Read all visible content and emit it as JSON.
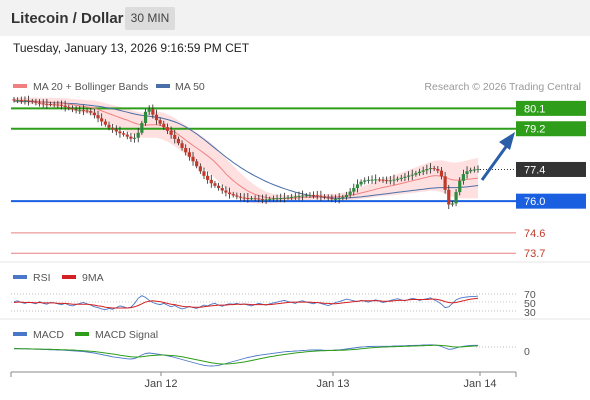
{
  "header": {
    "title": "Litecoin / Dollar",
    "timeframe": "30 MIN"
  },
  "timestamp": "Tuesday, January 13, 2026 9:16:59 PM CET",
  "legend": {
    "ma20_label": "MA 20 + Bollinger Bands",
    "ma50_label": "MA 50",
    "ma20_color": "#f08080",
    "ma50_color": "#4a6ea8",
    "credit": "Research © 2026 Trading Central"
  },
  "colors": {
    "up": "#2e8b3e",
    "down": "#c0392b",
    "resistance": "#2e9e1a",
    "support": "#1a5fe0",
    "pivot": "#333333",
    "minor": "#e88080",
    "band": "#ffd6d6",
    "arrow": "#2a5ea8"
  },
  "rsi_panel": {
    "label_rsi": "RSI",
    "label_9ma": "9MA",
    "levels": [
      "70",
      "50",
      "30"
    ],
    "rsi_color": "#4a78c8",
    "ma_color": "#d42020"
  },
  "macd_panel": {
    "label_macd": "MACD",
    "label_signal": "MACD Signal",
    "zero_label": "0",
    "macd_color": "#4a78c8",
    "signal_color": "#2e9e1a"
  },
  "x_axis": {
    "labels": [
      "Jan 12",
      "Jan 13",
      "Jan 14"
    ]
  },
  "chart_data": {
    "type": "candlestick",
    "y_range": [
      73.4,
      81.0
    ],
    "levels": [
      {
        "label": "80.1",
        "value": 80.1,
        "kind": "resistance"
      },
      {
        "label": "79.2",
        "value": 79.2,
        "kind": "resistance"
      },
      {
        "label": "77.4",
        "value": 77.4,
        "kind": "pivot"
      },
      {
        "label": "76.0",
        "value": 76.0,
        "kind": "support"
      },
      {
        "label": "74.6",
        "value": 74.6,
        "kind": "minor"
      },
      {
        "label": "73.7",
        "value": 73.7,
        "kind": "minor"
      }
    ],
    "x_tick_positions": [
      35,
      90,
      120
    ],
    "close": [
      80.45,
      80.46,
      80.44,
      80.44,
      80.42,
      80.39,
      80.35,
      80.32,
      80.3,
      80.29,
      80.28,
      80.27,
      80.26,
      80.22,
      80.16,
      80.1,
      80.05,
      80.02,
      80.02,
      80.0,
      79.98,
      79.91,
      79.8,
      79.66,
      79.52,
      79.38,
      79.25,
      79.16,
      79.08,
      79.0,
      78.94,
      78.85,
      78.76,
      78.8,
      79.02,
      79.45,
      79.95,
      80.08,
      79.82,
      79.58,
      79.42,
      79.27,
      79.11,
      78.93,
      78.75,
      78.56,
      78.35,
      78.16,
      77.96,
      77.76,
      77.54,
      77.32,
      77.12,
      76.94,
      76.79,
      76.68,
      76.58,
      76.47,
      76.38,
      76.31,
      76.25,
      76.2,
      76.16,
      76.14,
      76.13,
      76.13,
      76.12,
      76.1,
      76.08,
      76.08,
      76.1,
      76.12,
      76.13,
      76.14,
      76.15,
      76.17,
      76.19,
      76.21,
      76.23,
      76.25,
      76.26,
      76.27,
      76.26,
      76.24,
      76.21,
      76.17,
      76.13,
      76.1,
      76.1,
      76.13,
      76.18,
      76.28,
      76.42,
      76.58,
      76.74,
      76.86,
      76.92,
      76.94,
      76.95,
      76.96,
      76.95,
      76.93,
      76.91,
      76.92,
      76.95,
      76.99,
      77.03,
      77.08,
      77.13,
      77.17,
      77.24,
      77.3,
      77.36,
      77.42,
      77.46,
      77.42,
      77.35,
      77.1,
      76.5,
      75.85,
      75.9,
      76.4,
      76.9,
      77.2,
      77.32,
      77.38,
      77.4,
      77.42
    ],
    "ma20": [
      80.45,
      80.46,
      80.45,
      80.45,
      80.44,
      80.43,
      80.42,
      80.4,
      80.39,
      80.38,
      80.37,
      80.35,
      80.34,
      80.33,
      80.31,
      80.29,
      80.26,
      80.24,
      80.21,
      80.19,
      80.16,
      80.14,
      80.11,
      80.05,
      79.99,
      79.93,
      79.87,
      79.81,
      79.75,
      79.69,
      79.63,
      79.58,
      79.51,
      79.45,
      79.4,
      79.36,
      79.36,
      79.37,
      79.38,
      79.38,
      79.35,
      79.3,
      79.23,
      79.15,
      79.05,
      78.94,
      78.82,
      78.7,
      78.58,
      78.46,
      78.35,
      78.24,
      78.12,
      78.0,
      77.87,
      77.73,
      77.56,
      77.39,
      77.21,
      77.05,
      76.91,
      76.78,
      76.66,
      76.55,
      76.45,
      76.37,
      76.3,
      76.24,
      76.2,
      76.16,
      76.14,
      76.12,
      76.11,
      76.11,
      76.12,
      76.12,
      76.13,
      76.14,
      76.15,
      76.16,
      76.17,
      76.17,
      76.18,
      76.18,
      76.19,
      76.19,
      76.19,
      76.19,
      76.19,
      76.2,
      76.21,
      76.23,
      76.25,
      76.28,
      76.32,
      76.36,
      76.4,
      76.44,
      76.48,
      76.53,
      76.57,
      76.61,
      76.64,
      76.67,
      76.7,
      76.74,
      76.78,
      76.82,
      76.86,
      76.9,
      76.94,
      76.98,
      77.02,
      77.06,
      77.1,
      77.12,
      77.12,
      77.1,
      77.06,
      76.99,
      76.95,
      76.93,
      76.93,
      76.94,
      76.96,
      76.98,
      77.0,
      77.02
    ],
    "ma50": [
      80.42,
      80.42,
      80.41,
      80.41,
      80.4,
      80.4,
      80.39,
      80.39,
      80.38,
      80.37,
      80.36,
      80.35,
      80.35,
      80.34,
      80.33,
      80.32,
      80.31,
      80.3,
      80.28,
      80.27,
      80.25,
      80.23,
      80.21,
      80.19,
      80.17,
      80.14,
      80.11,
      80.08,
      80.05,
      80.01,
      79.97,
      79.93,
      79.89,
      79.85,
      79.82,
      79.79,
      79.77,
      79.75,
      79.73,
      79.71,
      79.69,
      79.65,
      79.61,
      79.56,
      79.5,
      79.44,
      79.36,
      79.28,
      79.18,
      79.08,
      78.97,
      78.85,
      78.73,
      78.6,
      78.47,
      78.34,
      78.21,
      78.08,
      77.95,
      77.83,
      77.71,
      77.6,
      77.49,
      77.39,
      77.29,
      77.2,
      77.11,
      77.03,
      76.95,
      76.87,
      76.8,
      76.73,
      76.67,
      76.61,
      76.55,
      76.5,
      76.45,
      76.4,
      76.36,
      76.32,
      76.28,
      76.25,
      76.22,
      76.2,
      76.18,
      76.16,
      76.15,
      76.14,
      76.13,
      76.13,
      76.13,
      76.14,
      76.15,
      76.16,
      76.18,
      76.19,
      76.21,
      76.23,
      76.25,
      76.27,
      76.29,
      76.31,
      76.33,
      76.35,
      76.37,
      76.39,
      76.41,
      76.43,
      76.45,
      76.47,
      76.49,
      76.51,
      76.53,
      76.55,
      76.57,
      76.58,
      76.59,
      76.6,
      76.6,
      76.6,
      76.6,
      76.6,
      76.61,
      76.62,
      76.63,
      76.65,
      76.67,
      76.69
    ],
    "band_width": [
      0.1,
      0.11,
      0.12,
      0.13,
      0.14,
      0.15,
      0.16,
      0.17,
      0.18,
      0.19,
      0.2,
      0.21,
      0.22,
      0.23,
      0.24,
      0.25,
      0.26,
      0.27,
      0.28,
      0.29,
      0.3,
      0.32,
      0.34,
      0.36,
      0.38,
      0.4,
      0.42,
      0.44,
      0.46,
      0.48,
      0.5,
      0.51,
      0.52,
      0.53,
      0.54,
      0.55,
      0.56,
      0.57,
      0.58,
      0.58,
      0.59,
      0.6,
      0.6,
      0.61,
      0.62,
      0.63,
      0.64,
      0.65,
      0.66,
      0.67,
      0.68,
      0.68,
      0.69,
      0.69,
      0.7,
      0.7,
      0.7,
      0.69,
      0.68,
      0.67,
      0.65,
      0.62,
      0.58,
      0.54,
      0.5,
      0.45,
      0.4,
      0.35,
      0.3,
      0.26,
      0.23,
      0.2,
      0.18,
      0.16,
      0.15,
      0.14,
      0.13,
      0.13,
      0.12,
      0.12,
      0.12,
      0.12,
      0.12,
      0.12,
      0.12,
      0.12,
      0.13,
      0.13,
      0.14,
      0.15,
      0.16,
      0.18,
      0.2,
      0.22,
      0.24,
      0.26,
      0.28,
      0.3,
      0.32,
      0.34,
      0.36,
      0.38,
      0.4,
      0.42,
      0.44,
      0.46,
      0.48,
      0.5,
      0.52,
      0.54,
      0.56,
      0.58,
      0.6,
      0.62,
      0.64,
      0.66,
      0.68,
      0.7,
      0.72,
      0.74,
      0.76,
      0.78,
      0.8,
      0.82,
      0.84,
      0.86,
      0.88,
      0.9
    ],
    "rsi": [
      52,
      54,
      50,
      48,
      51,
      49,
      47,
      52,
      48,
      46,
      50,
      49,
      47,
      45,
      48,
      44,
      42,
      45,
      48,
      50,
      47,
      44,
      40,
      38,
      35,
      33,
      36,
      34,
      38,
      42,
      40,
      37,
      39,
      48,
      60,
      66,
      62,
      55,
      50,
      47,
      45,
      48,
      44,
      40,
      43,
      38,
      35,
      37,
      41,
      38,
      36,
      40,
      44,
      42,
      46,
      48,
      44,
      41,
      45,
      47,
      46,
      48,
      45,
      47,
      44,
      42,
      45,
      48,
      46,
      44,
      47,
      49,
      51,
      53,
      55,
      52,
      50,
      48,
      52,
      54,
      51,
      49,
      47,
      50,
      48,
      45,
      43,
      46,
      50,
      52,
      55,
      58,
      56,
      54,
      52,
      55,
      53,
      51,
      54,
      56,
      53,
      50,
      52,
      55,
      57,
      59,
      56,
      54,
      57,
      60,
      58,
      55,
      57,
      59,
      61,
      56,
      52,
      46,
      38,
      40,
      48,
      56,
      60,
      62,
      63,
      64,
      64,
      65
    ],
    "rsi_ma": [
      50,
      51,
      51,
      50,
      50,
      50,
      49,
      50,
      49,
      49,
      49,
      49,
      48,
      48,
      48,
      47,
      46,
      46,
      46,
      46,
      46,
      45,
      44,
      42,
      41,
      39,
      38,
      37,
      37,
      37,
      37,
      37,
      38,
      40,
      43,
      47,
      51,
      53,
      54,
      53,
      52,
      50,
      48,
      46,
      45,
      43,
      41,
      40,
      40,
      39,
      39,
      39,
      40,
      41,
      42,
      43,
      44,
      44,
      44,
      45,
      45,
      46,
      46,
      46,
      46,
      45,
      45,
      45,
      45,
      45,
      45,
      46,
      47,
      48,
      49,
      50,
      51,
      51,
      51,
      51,
      51,
      51,
      50,
      50,
      49,
      48,
      48,
      47,
      47,
      48,
      49,
      50,
      51,
      52,
      53,
      54,
      54,
      54,
      54,
      54,
      54,
      53,
      53,
      53,
      54,
      55,
      55,
      55,
      56,
      57,
      57,
      57,
      57,
      57,
      58,
      58,
      57,
      55,
      52,
      50,
      49,
      50,
      52,
      54,
      56,
      58,
      59,
      60
    ],
    "macd": [
      0.02,
      0.02,
      0.01,
      0.01,
      0.0,
      0.0,
      -0.01,
      -0.01,
      -0.02,
      -0.02,
      -0.03,
      -0.03,
      -0.04,
      -0.04,
      -0.05,
      -0.06,
      -0.07,
      -0.08,
      -0.09,
      -0.1,
      -0.12,
      -0.14,
      -0.16,
      -0.19,
      -0.22,
      -0.25,
      -0.28,
      -0.31,
      -0.33,
      -0.35,
      -0.37,
      -0.39,
      -0.4,
      -0.38,
      -0.32,
      -0.24,
      -0.18,
      -0.16,
      -0.18,
      -0.2,
      -0.22,
      -0.24,
      -0.27,
      -0.3,
      -0.34,
      -0.38,
      -0.42,
      -0.46,
      -0.5,
      -0.54,
      -0.58,
      -0.62,
      -0.65,
      -0.67,
      -0.68,
      -0.67,
      -0.65,
      -0.62,
      -0.58,
      -0.54,
      -0.5,
      -0.46,
      -0.42,
      -0.38,
      -0.34,
      -0.31,
      -0.28,
      -0.25,
      -0.23,
      -0.21,
      -0.19,
      -0.17,
      -0.15,
      -0.13,
      -0.11,
      -0.1,
      -0.09,
      -0.08,
      -0.07,
      -0.06,
      -0.05,
      -0.04,
      -0.04,
      -0.04,
      -0.04,
      -0.05,
      -0.05,
      -0.05,
      -0.04,
      -0.03,
      -0.02,
      0.0,
      0.02,
      0.04,
      0.06,
      0.08,
      0.09,
      0.1,
      0.1,
      0.11,
      0.11,
      0.11,
      0.11,
      0.11,
      0.12,
      0.12,
      0.13,
      0.13,
      0.14,
      0.14,
      0.15,
      0.15,
      0.16,
      0.16,
      0.17,
      0.16,
      0.14,
      0.1,
      0.04,
      -0.01,
      0.0,
      0.04,
      0.08,
      0.11,
      0.13,
      0.14,
      0.15,
      0.15
    ],
    "macd_signal": [
      0.01,
      0.01,
      0.01,
      0.01,
      0.01,
      0.0,
      0.0,
      0.0,
      -0.01,
      -0.01,
      -0.01,
      -0.02,
      -0.02,
      -0.03,
      -0.03,
      -0.04,
      -0.04,
      -0.05,
      -0.06,
      -0.07,
      -0.08,
      -0.09,
      -0.1,
      -0.12,
      -0.14,
      -0.16,
      -0.18,
      -0.2,
      -0.22,
      -0.25,
      -0.27,
      -0.29,
      -0.31,
      -0.32,
      -0.32,
      -0.31,
      -0.29,
      -0.27,
      -0.26,
      -0.25,
      -0.24,
      -0.24,
      -0.25,
      -0.26,
      -0.27,
      -0.29,
      -0.31,
      -0.34,
      -0.37,
      -0.4,
      -0.43,
      -0.46,
      -0.49,
      -0.52,
      -0.55,
      -0.57,
      -0.59,
      -0.6,
      -0.6,
      -0.59,
      -0.58,
      -0.56,
      -0.54,
      -0.52,
      -0.49,
      -0.46,
      -0.43,
      -0.4,
      -0.37,
      -0.34,
      -0.31,
      -0.29,
      -0.26,
      -0.24,
      -0.22,
      -0.2,
      -0.18,
      -0.16,
      -0.14,
      -0.13,
      -0.11,
      -0.1,
      -0.09,
      -0.08,
      -0.07,
      -0.07,
      -0.06,
      -0.06,
      -0.06,
      -0.05,
      -0.05,
      -0.04,
      -0.03,
      -0.02,
      -0.01,
      0.01,
      0.02,
      0.04,
      0.05,
      0.06,
      0.07,
      0.08,
      0.08,
      0.09,
      0.09,
      0.1,
      0.1,
      0.11,
      0.11,
      0.12,
      0.12,
      0.13,
      0.13,
      0.14,
      0.14,
      0.15,
      0.15,
      0.14,
      0.13,
      0.11,
      0.09,
      0.08,
      0.08,
      0.09,
      0.1,
      0.11,
      0.12,
      0.13
    ]
  }
}
